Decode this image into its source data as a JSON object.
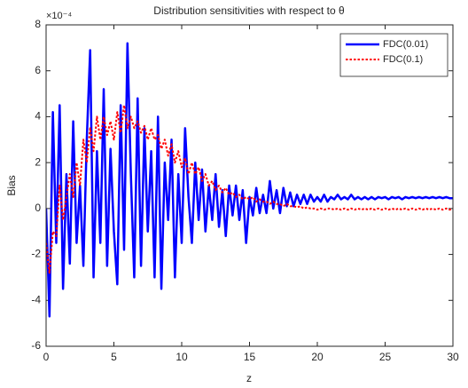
{
  "chart_data": {
    "type": "line",
    "title": "Distribution sensitivities with respect to θ",
    "x_label": "z",
    "y_label": "Bias",
    "y_exponent": "×10⁻⁴",
    "x": [
      0,
      0.25,
      0.5,
      0.75,
      1,
      1.25,
      1.5,
      1.75,
      2,
      2.25,
      2.5,
      2.75,
      3,
      3.25,
      3.5,
      3.75,
      4,
      4.25,
      4.5,
      4.75,
      5,
      5.25,
      5.5,
      5.75,
      6,
      6.25,
      6.5,
      6.75,
      7,
      7.25,
      7.5,
      7.75,
      8,
      8.25,
      8.5,
      8.75,
      9,
      9.25,
      9.5,
      9.75,
      10,
      10.25,
      10.5,
      10.75,
      11,
      11.25,
      11.5,
      11.75,
      12,
      12.25,
      12.5,
      12.75,
      13,
      13.25,
      13.5,
      13.75,
      14,
      14.25,
      14.5,
      14.75,
      15,
      15.25,
      15.5,
      15.75,
      16,
      16.25,
      16.5,
      16.75,
      17,
      17.25,
      17.5,
      17.75,
      18,
      18.25,
      18.5,
      18.75,
      19,
      19.25,
      19.5,
      19.75,
      20,
      20.25,
      20.5,
      20.75,
      21,
      21.25,
      21.5,
      21.75,
      22,
      22.25,
      22.5,
      22.75,
      23,
      23.25,
      23.5,
      23.75,
      24,
      24.25,
      24.5,
      24.75,
      25,
      25.25,
      25.5,
      25.75,
      26,
      26.25,
      26.5,
      26.75,
      27,
      27.25,
      27.5,
      27.75,
      28,
      28.25,
      28.5,
      28.75,
      29,
      29.25,
      29.5,
      29.75,
      30
    ],
    "series": [
      {
        "name": "FDC(0.01)",
        "color": "#0000ff",
        "style": "solid",
        "values": [
          0,
          -4.7,
          4.2,
          -1.5,
          4.5,
          -3.5,
          1.5,
          -2.4,
          3.8,
          -1.5,
          1.0,
          -2.5,
          3.0,
          6.9,
          -3.0,
          2.5,
          -1.5,
          5.2,
          -2.5,
          2.6,
          -1.0,
          -3.3,
          4.5,
          -1.8,
          7.2,
          1.5,
          -3.0,
          4.8,
          -2.5,
          3.5,
          -1.0,
          2.5,
          -3.0,
          4.0,
          -3.5,
          2.0,
          -0.5,
          3.0,
          -3.0,
          1.5,
          -1.5,
          3.5,
          0.5,
          -1.5,
          2.0,
          -0.5,
          1.7,
          -1.0,
          1.0,
          -0.5,
          1.5,
          -0.8,
          0.8,
          -1.2,
          1.0,
          -0.3,
          1.0,
          -0.5,
          0.8,
          -1.5,
          0.5,
          -0.3,
          0.9,
          -0.2,
          0.6,
          -0.2,
          1.2,
          0.0,
          0.8,
          -0.2,
          0.9,
          0.1,
          0.7,
          0.1,
          0.6,
          0.2,
          0.6,
          0.2,
          0.6,
          0.3,
          0.5,
          0.3,
          0.6,
          0.3,
          0.5,
          0.4,
          0.6,
          0.4,
          0.5,
          0.4,
          0.6,
          0.4,
          0.5,
          0.4,
          0.5,
          0.4,
          0.5,
          0.4,
          0.5,
          0.45,
          0.5,
          0.4,
          0.5,
          0.45,
          0.5,
          0.4,
          0.5,
          0.45,
          0.5,
          0.45,
          0.5,
          0.45,
          0.5,
          0.45,
          0.5,
          0.45,
          0.5,
          0.45,
          0.5,
          0.45,
          0.45
        ]
      },
      {
        "name": "FDC(0.1)",
        "color": "#ff0000",
        "style": "dotted",
        "values": [
          -1.5,
          -2.8,
          -1.0,
          -1.2,
          1.0,
          -0.5,
          0.5,
          1.5,
          0.5,
          2.0,
          1.0,
          3.0,
          2.0,
          3.5,
          2.5,
          4.0,
          3.0,
          4.0,
          3.2,
          3.8,
          3.0,
          4.2,
          3.3,
          4.5,
          3.5,
          4.0,
          3.5,
          3.8,
          3.3,
          3.6,
          3.0,
          3.5,
          3.0,
          3.2,
          2.6,
          3.0,
          2.3,
          2.8,
          2.0,
          2.5,
          1.8,
          2.2,
          1.5,
          2.0,
          1.5,
          1.8,
          1.2,
          1.5,
          1.0,
          1.2,
          0.8,
          1.0,
          0.7,
          0.9,
          0.6,
          0.7,
          0.5,
          0.6,
          0.4,
          0.5,
          0.4,
          0.5,
          0.3,
          0.4,
          0.3,
          0.3,
          0.2,
          0.3,
          0.2,
          0.2,
          0.1,
          0.2,
          0.1,
          0.1,
          0.05,
          0.1,
          0,
          0.05,
          0,
          0,
          -0.05,
          0,
          -0.05,
          0,
          0,
          -0.05,
          0,
          -0.05,
          0,
          -0.05,
          0,
          -0.05,
          0,
          -0.05,
          0,
          -0.05,
          0,
          -0.05,
          0,
          -0.05,
          0,
          -0.05,
          0,
          -0.05,
          0,
          -0.05,
          0,
          -0.05,
          0,
          -0.05,
          0,
          -0.05,
          0,
          -0.05,
          0,
          -0.05,
          0,
          -0.05,
          0,
          -0.05,
          0
        ]
      }
    ],
    "xlim": [
      0,
      30
    ],
    "xticks": [
      0,
      5,
      10,
      15,
      20,
      25,
      30
    ],
    "ylim": [
      -6,
      8
    ],
    "yticks": [
      -6,
      -4,
      -2,
      0,
      2,
      4,
      6,
      8
    ],
    "grid": false,
    "legend": "upper right"
  }
}
